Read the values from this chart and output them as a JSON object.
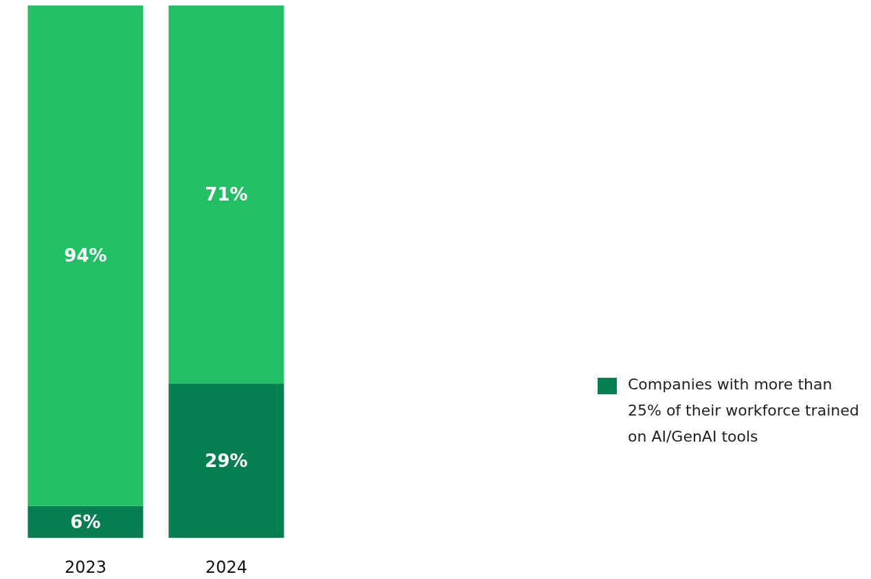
{
  "chart_data": {
    "type": "bar",
    "stacked": true,
    "categories": [
      "2023",
      "2024"
    ],
    "legend": "right",
    "series": [
      {
        "name": "Companies with more than 25% of their workforce trained on AI/GenAI tools",
        "color": "#057e51",
        "values": [
          6,
          29
        ],
        "value_labels": [
          "6%",
          "29%"
        ]
      },
      {
        "color": "#22c065",
        "values": [
          94,
          71
        ],
        "value_labels": [
          "94%",
          "71%"
        ]
      }
    ]
  }
}
